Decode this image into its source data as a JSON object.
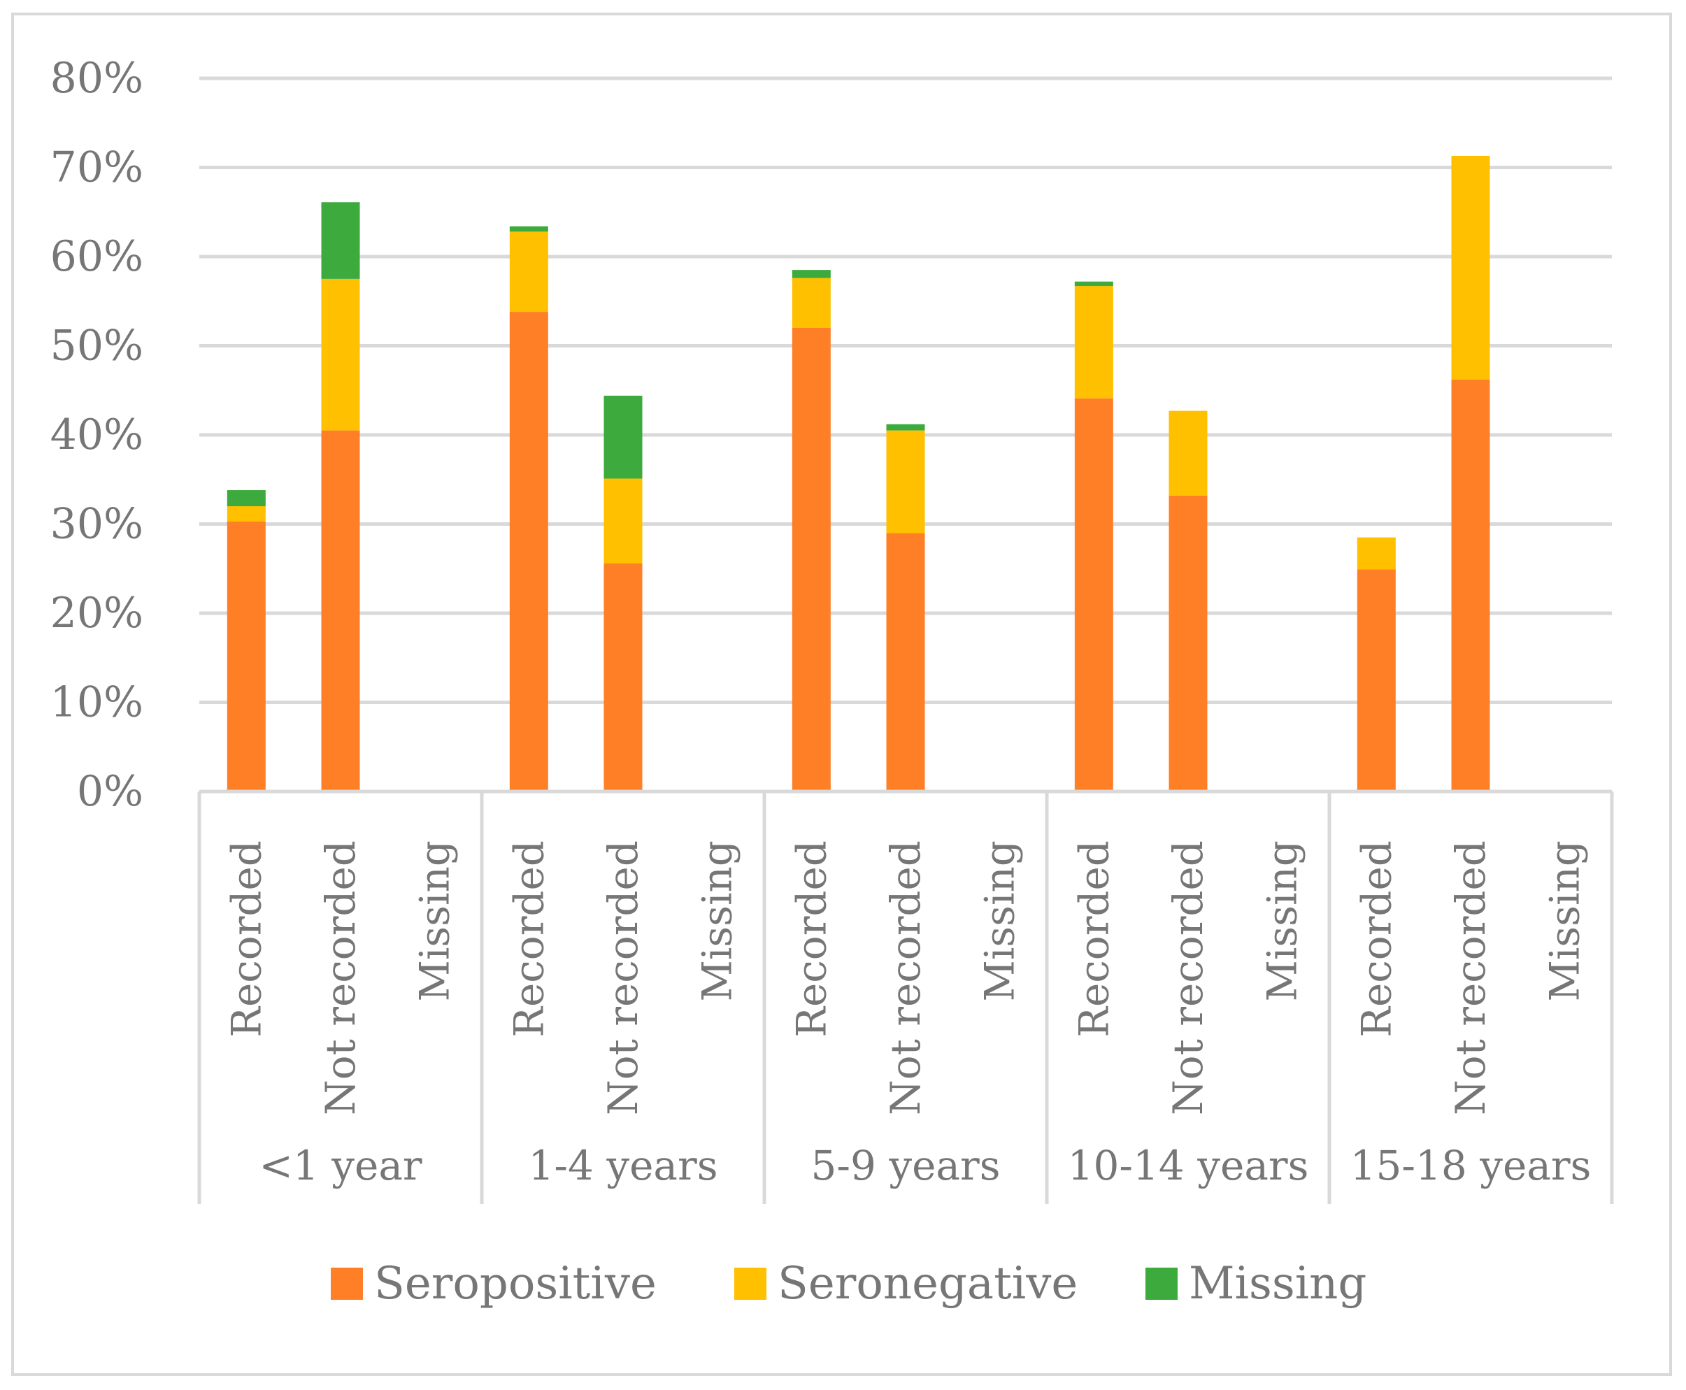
{
  "chart_data": {
    "type": "bar",
    "stacked": true,
    "title": "",
    "xlabel": "",
    "ylabel": "",
    "ylim": [
      0,
      80
    ],
    "y_ticks": [
      "0%",
      "10%",
      "20%",
      "30%",
      "40%",
      "50%",
      "60%",
      "70%",
      "80%"
    ],
    "y_tick_values": [
      0,
      10,
      20,
      30,
      40,
      50,
      60,
      70,
      80
    ],
    "grid": true,
    "legend_position": "bottom",
    "groups": [
      "<1 year",
      "1-4 years",
      "5-9 years",
      "10-14 years",
      "15-18 years"
    ],
    "subcategories": [
      "Recorded",
      "Not recorded",
      "Missing"
    ],
    "series": [
      {
        "name": "Seropositive",
        "color": "#FF7F27",
        "values": [
          30.3,
          40.5,
          0,
          53.8,
          25.6,
          0,
          52.0,
          29.0,
          0,
          44.1,
          33.2,
          0,
          24.9,
          46.2,
          0
        ]
      },
      {
        "name": "Seronegative",
        "color": "#FFC000",
        "values": [
          1.7,
          17.0,
          0,
          9.0,
          9.5,
          0,
          5.6,
          11.5,
          0,
          12.6,
          9.5,
          0,
          3.6,
          25.1,
          0
        ]
      },
      {
        "name": "Missing",
        "color": "#3CAA3C",
        "values": [
          1.8,
          8.6,
          0,
          0.6,
          9.3,
          0,
          0.9,
          0.7,
          0,
          0.5,
          0,
          0,
          0,
          0,
          0
        ]
      }
    ]
  }
}
